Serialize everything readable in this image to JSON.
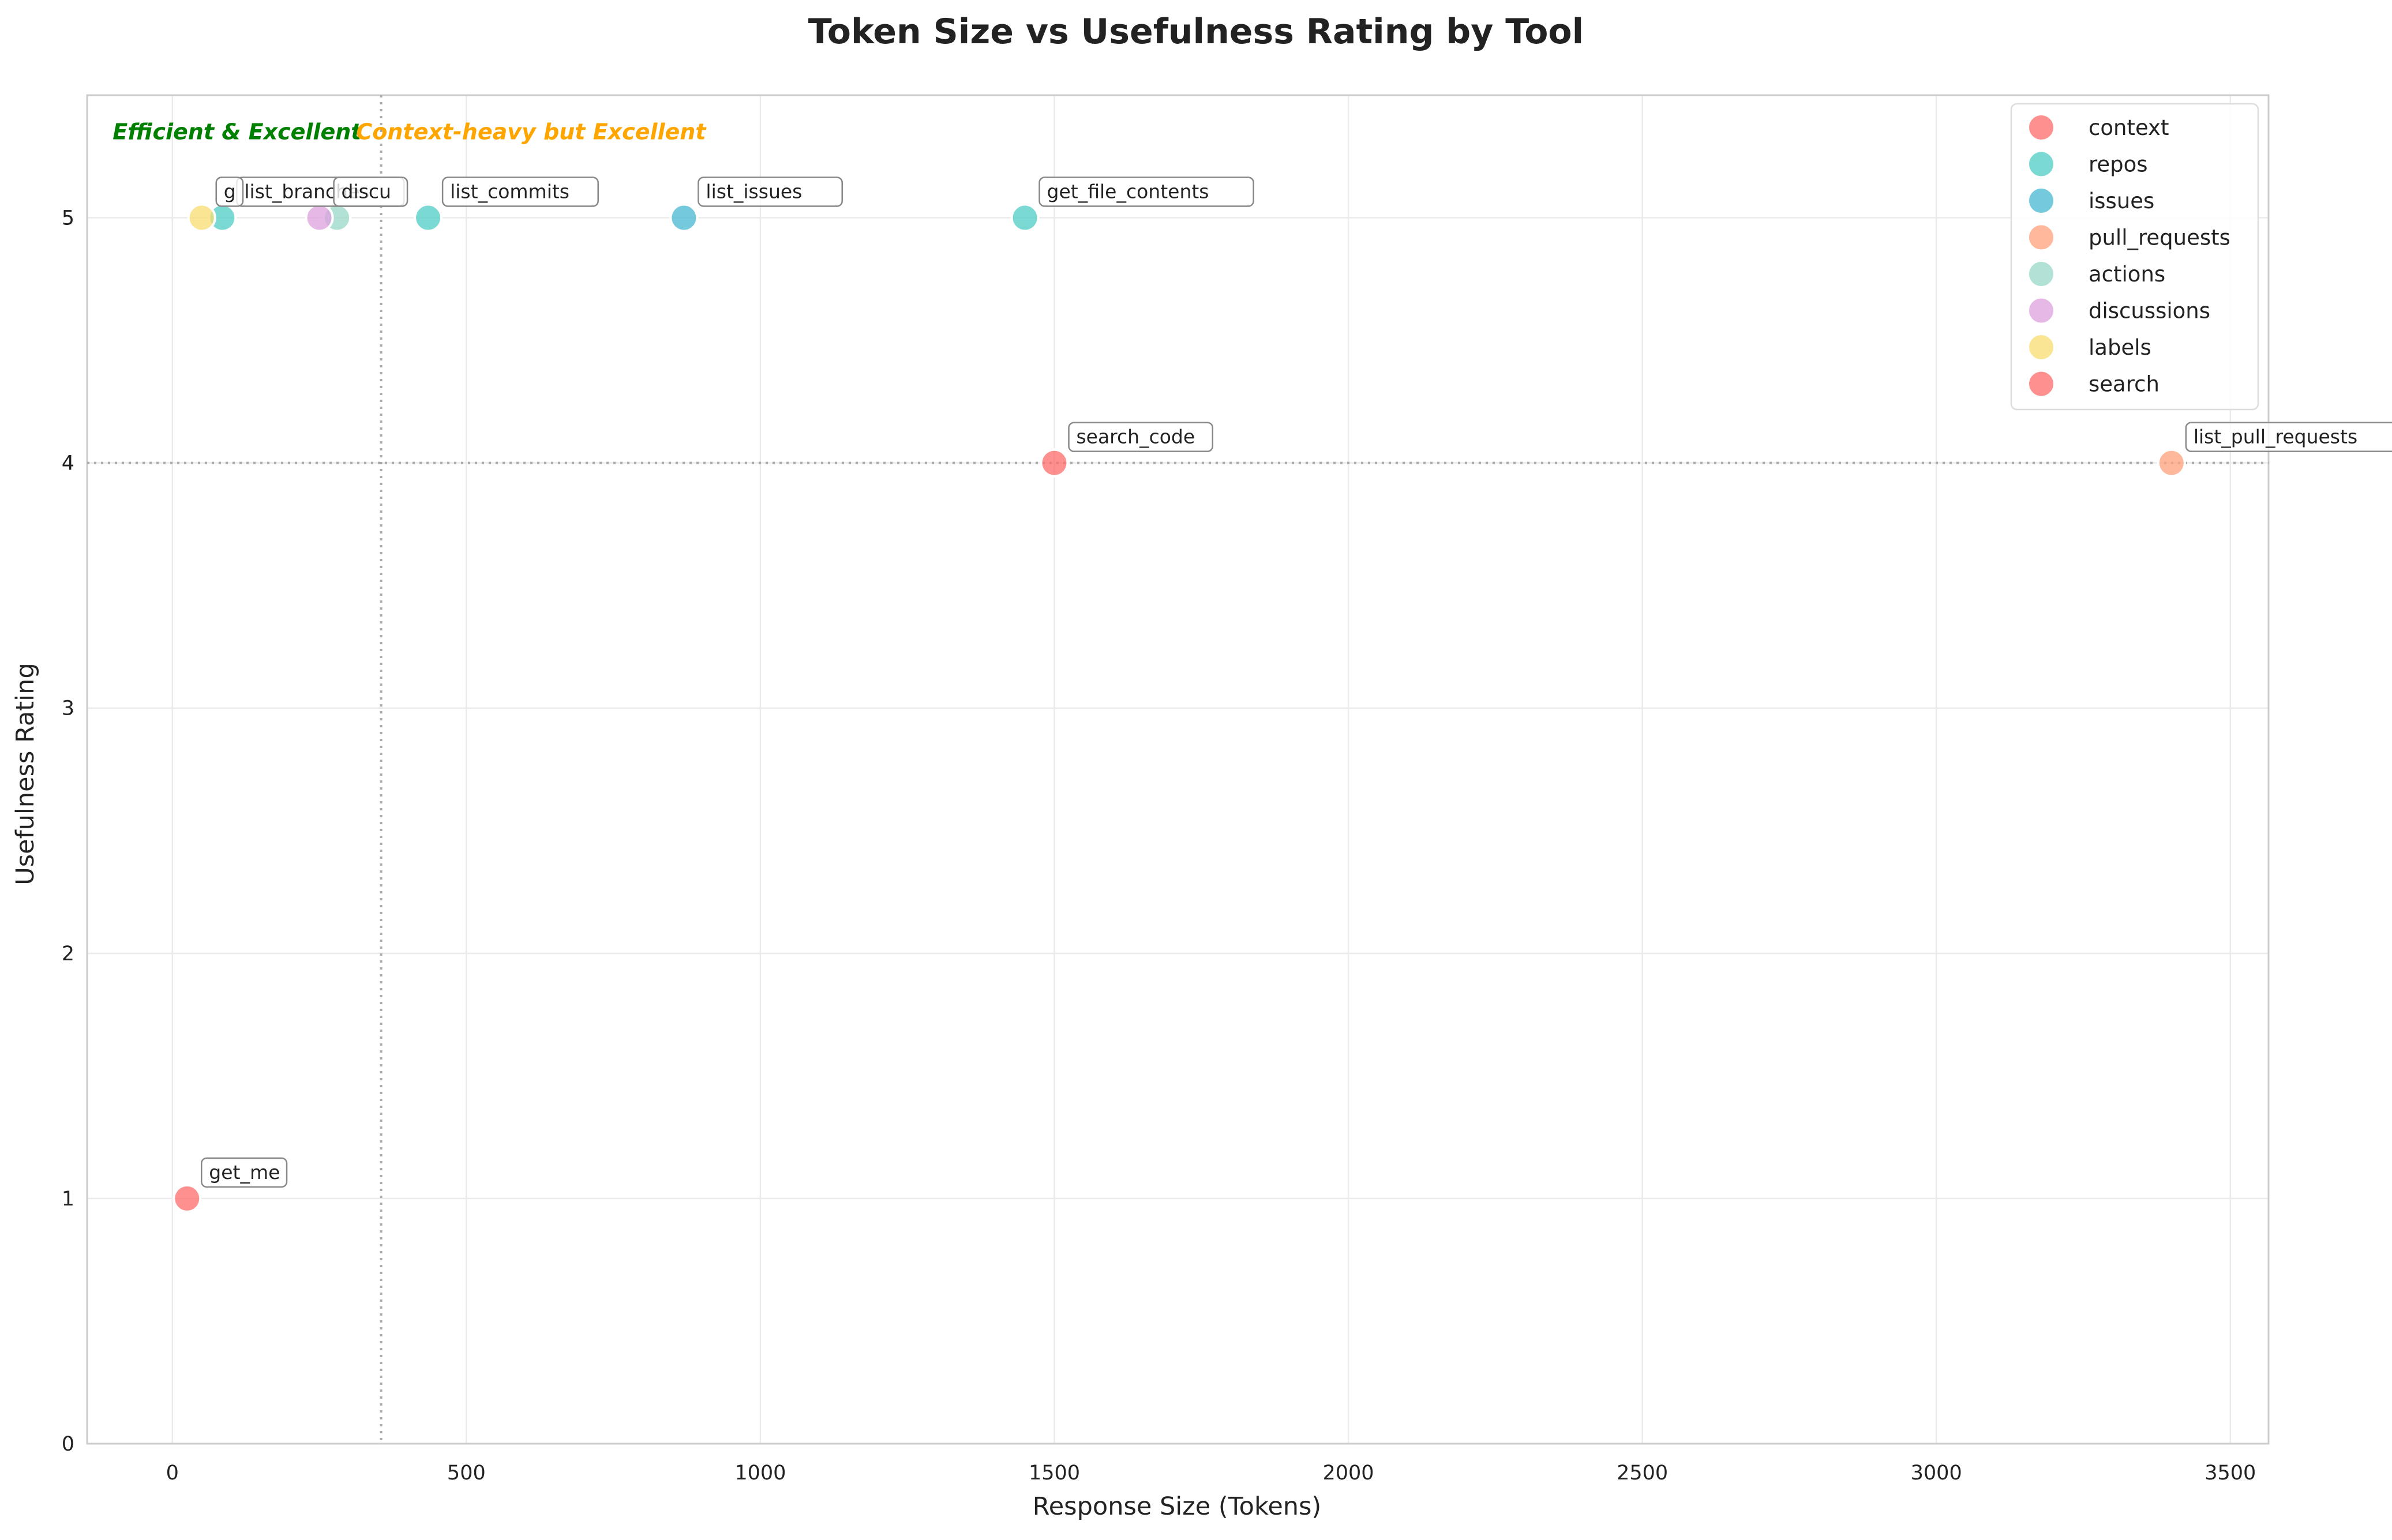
{
  "chart_data": {
    "type": "scatter",
    "title": "Token Size vs Usefulness Rating by Tool",
    "xlabel": "Response Size (Tokens)",
    "ylabel": "Usefulness Rating",
    "xlim": [
      -145,
      3565
    ],
    "ylim": [
      0,
      5.5
    ],
    "xticks": [
      0,
      500,
      1000,
      1500,
      2000,
      2500,
      3000,
      3500
    ],
    "yticks": [
      0,
      1,
      2,
      3,
      4,
      5
    ],
    "grid": true,
    "legend_position": "top-right",
    "threshold_x": 355,
    "threshold_y": 4,
    "region_labels": [
      {
        "text": "Efficient & Excellent",
        "color": "#008000",
        "x": 110,
        "y": 5.32
      },
      {
        "text": "Context-heavy but Excellent",
        "color": "#FFA500",
        "x": 610,
        "y": 5.32
      }
    ],
    "series": [
      {
        "name": "context",
        "color": "#FF6B6B",
        "points": [
          {
            "x": 25,
            "y": 1,
            "label": "get_me"
          }
        ]
      },
      {
        "name": "repos",
        "color": "#4ECDC4",
        "points": [
          {
            "x": 85,
            "y": 5,
            "label": "list_branches"
          },
          {
            "x": 435,
            "y": 5,
            "label": "list_commits"
          },
          {
            "x": 1450,
            "y": 5,
            "label": "get_file_contents"
          }
        ]
      },
      {
        "name": "issues",
        "color": "#45B7D1",
        "points": [
          {
            "x": 870,
            "y": 5,
            "label": "list_issues"
          }
        ]
      },
      {
        "name": "pull_requests",
        "color": "#FFA07A",
        "points": [
          {
            "x": 3400,
            "y": 4,
            "label": "list_pull_requests"
          }
        ]
      },
      {
        "name": "actions",
        "color": "#98D8C8",
        "points": [
          {
            "x": 280,
            "y": 5,
            "label": ""
          }
        ]
      },
      {
        "name": "discussions",
        "color": "#DDA0DD",
        "points": [
          {
            "x": 250,
            "y": 5,
            "label": "discu"
          }
        ]
      },
      {
        "name": "labels",
        "color": "#F7DC6F",
        "points": [
          {
            "x": 50,
            "y": 5,
            "label": "g"
          }
        ]
      },
      {
        "name": "search",
        "color": "#FF6B6B",
        "points": [
          {
            "x": 1500,
            "y": 4,
            "label": "search_code"
          }
        ]
      }
    ]
  }
}
